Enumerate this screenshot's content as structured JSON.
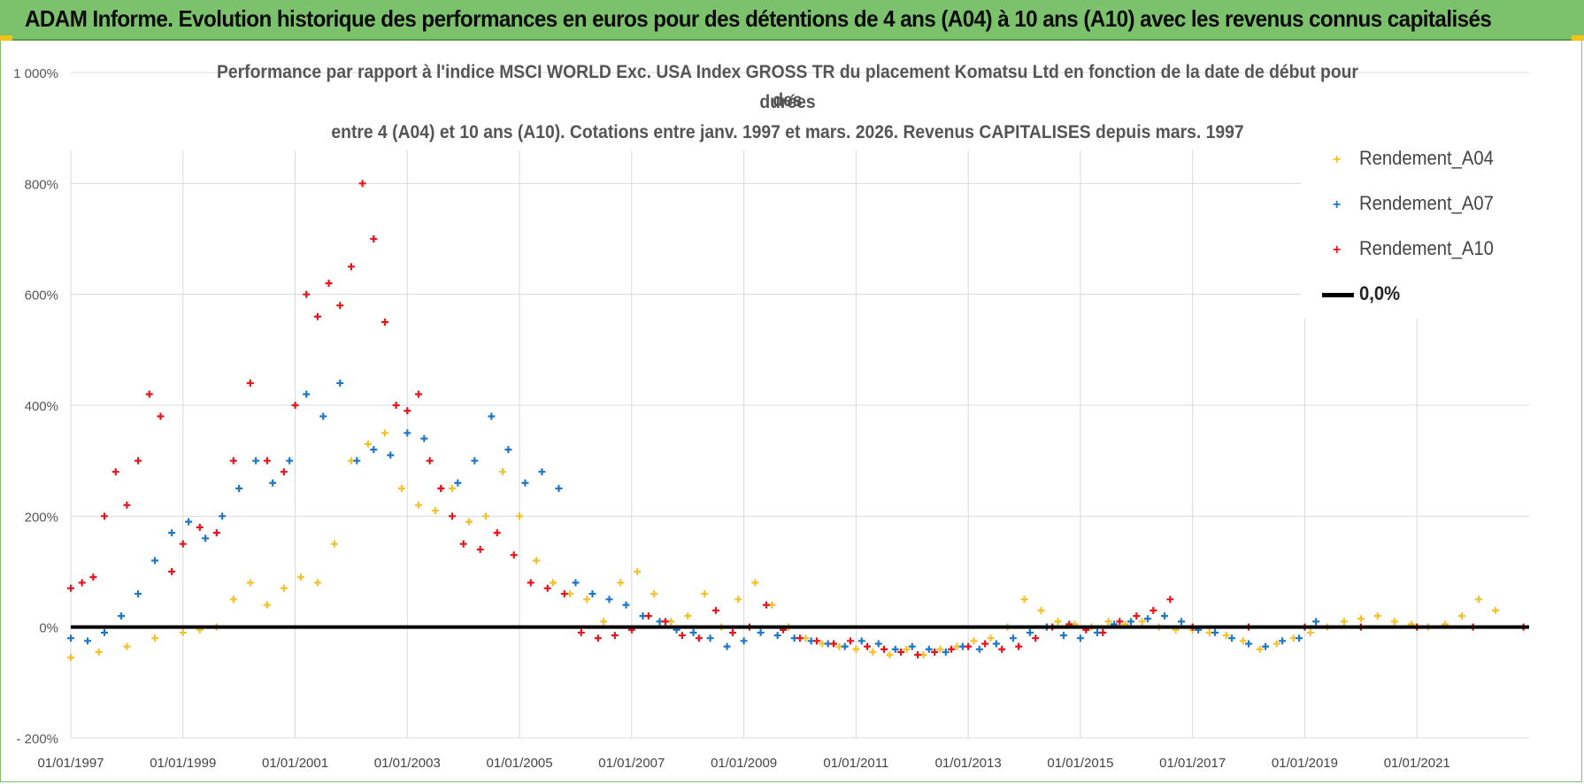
{
  "banner": {
    "title": "ADAM Informe. Evolution historique des performances en euros pour des détentions de 4 ans (A04) à 10 ans (A10) avec les revenus connus capitalisés",
    "color": "#7cc16b"
  },
  "chart_data": {
    "type": "scatter",
    "title_lines": [
      "Performance par rapport à l'indice MSCI WORLD Exc. USA Index GROSS TR  du placement Komatsu Ltd en fonction de la date de début pour des",
      "durées",
      "entre 4 (A04) et 10 ans (A10). Cotations entre janv. 1997 et mars. 2026. Revenus CAPITALISES depuis mars. 1997"
    ],
    "x_tick_labels": [
      "01/01/1997",
      "01/01/1999",
      "01/01/2001",
      "01/01/2003",
      "01/01/2005",
      "01/01/2007",
      "01/01/2009",
      "01/01/2011",
      "01/01/2013",
      "01/01/2015",
      "01/01/2017",
      "01/01/2019",
      "01/01/2021"
    ],
    "xlim": [
      "01/01/1997",
      "01/01/2023"
    ],
    "y_tick_labels": [
      "- 200%",
      "0%",
      "200%",
      "400%",
      "600%",
      "800%",
      "1 000%"
    ],
    "y_ticks": [
      -200,
      0,
      200,
      400,
      600,
      800,
      1000
    ],
    "ylim": [
      -200,
      1000
    ],
    "grid": true,
    "legend_position": "right",
    "series": [
      {
        "name": "Rendement_A04",
        "color": "#f5c02a",
        "x": [
          1997.0,
          1997.5,
          1998.0,
          1998.5,
          1999.0,
          1999.3,
          1999.6,
          1999.9,
          2000.2,
          2000.5,
          2000.8,
          2001.1,
          2001.4,
          2001.7,
          2002.0,
          2002.3,
          2002.6,
          2002.9,
          2003.2,
          2003.5,
          2003.8,
          2004.1,
          2004.4,
          2004.7,
          2005.0,
          2005.3,
          2005.6,
          2005.9,
          2006.2,
          2006.5,
          2006.8,
          2007.1,
          2007.4,
          2007.7,
          2008.0,
          2008.3,
          2008.6,
          2008.9,
          2009.2,
          2009.5,
          2009.8,
          2010.1,
          2010.4,
          2010.7,
          2011.0,
          2011.3,
          2011.6,
          2011.9,
          2012.2,
          2012.5,
          2012.8,
          2013.1,
          2013.4,
          2013.7,
          2014.0,
          2014.3,
          2014.6,
          2014.9,
          2015.2,
          2015.5,
          2015.8,
          2016.1,
          2016.4,
          2016.7,
          2017.0,
          2017.3,
          2017.6,
          2017.9,
          2018.2,
          2018.5,
          2018.8,
          2019.1,
          2019.4,
          2019.7,
          2020.0,
          2020.3,
          2020.6,
          2020.9,
          2021.2,
          2021.5,
          2021.8,
          2022.1,
          2022.4
        ],
        "y": [
          -55,
          -45,
          -35,
          -20,
          -10,
          -5,
          0,
          50,
          80,
          40,
          70,
          90,
          80,
          150,
          300,
          330,
          350,
          250,
          220,
          210,
          250,
          190,
          200,
          280,
          200,
          120,
          80,
          60,
          50,
          10,
          80,
          100,
          60,
          10,
          20,
          60,
          0,
          50,
          80,
          40,
          0,
          -20,
          -30,
          -35,
          -40,
          -45,
          -50,
          -40,
          -50,
          -40,
          -35,
          -25,
          -20,
          0,
          50,
          30,
          10,
          5,
          0,
          10,
          5,
          10,
          0,
          -5,
          -5,
          -10,
          -15,
          -25,
          -40,
          -30,
          -20,
          -10,
          0,
          10,
          15,
          20,
          10,
          5,
          0,
          5,
          20,
          50,
          30
        ]
      },
      {
        "name": "Rendement_A07",
        "color": "#1f77c8",
        "x": [
          1997.0,
          1997.3,
          1997.6,
          1997.9,
          1998.2,
          1998.5,
          1998.8,
          1999.1,
          1999.4,
          1999.7,
          2000.0,
          2000.3,
          2000.6,
          2000.9,
          2001.2,
          2001.5,
          2001.8,
          2002.1,
          2002.4,
          2002.7,
          2003.0,
          2003.3,
          2003.6,
          2003.9,
          2004.2,
          2004.5,
          2004.8,
          2005.1,
          2005.4,
          2005.7,
          2006.0,
          2006.3,
          2006.6,
          2006.9,
          2007.2,
          2007.5,
          2007.8,
          2008.1,
          2008.4,
          2008.7,
          2009.0,
          2009.3,
          2009.6,
          2009.9,
          2010.2,
          2010.5,
          2010.8,
          2011.1,
          2011.4,
          2011.7,
          2012.0,
          2012.3,
          2012.6,
          2012.9,
          2013.2,
          2013.5,
          2013.8,
          2014.1,
          2014.4,
          2014.7,
          2015.0,
          2015.3,
          2015.6,
          2015.9,
          2016.2,
          2016.5,
          2016.8,
          2017.1,
          2017.4,
          2017.7,
          2018.0,
          2018.3,
          2018.6,
          2018.9,
          2019.2
        ],
        "y": [
          -20,
          -25,
          -10,
          20,
          60,
          120,
          170,
          190,
          160,
          200,
          250,
          300,
          260,
          300,
          420,
          380,
          440,
          300,
          320,
          310,
          350,
          340,
          250,
          260,
          300,
          380,
          320,
          260,
          280,
          250,
          80,
          60,
          50,
          40,
          20,
          10,
          -5,
          -10,
          -20,
          -35,
          -25,
          -10,
          -15,
          -20,
          -25,
          -30,
          -35,
          -25,
          -30,
          -40,
          -35,
          -40,
          -45,
          -35,
          -40,
          -30,
          -20,
          -10,
          0,
          -15,
          -20,
          -10,
          5,
          10,
          15,
          20,
          10,
          -5,
          -10,
          -20,
          -30,
          -35,
          -25,
          -20,
          10
        ]
      },
      {
        "name": "Rendement_A10",
        "color": "#e8141c",
        "x": [
          1997.0,
          1997.2,
          1997.4,
          1997.6,
          1997.8,
          1998.0,
          1998.2,
          1998.4,
          1998.6,
          1998.8,
          1999.0,
          1999.3,
          1999.6,
          1999.9,
          2000.2,
          2000.5,
          2000.8,
          2001.0,
          2001.2,
          2001.4,
          2001.6,
          2001.8,
          2002.0,
          2002.2,
          2002.4,
          2002.6,
          2002.8,
          2003.0,
          2003.2,
          2003.4,
          2003.6,
          2003.8,
          2004.0,
          2004.3,
          2004.6,
          2004.9,
          2005.2,
          2005.5,
          2005.8,
          2006.1,
          2006.4,
          2006.7,
          2007.0,
          2007.3,
          2007.6,
          2007.9,
          2008.2,
          2008.5,
          2008.8,
          2009.1,
          2009.4,
          2009.7,
          2010.0,
          2010.3,
          2010.6,
          2010.9,
          2011.2,
          2011.5,
          2011.8,
          2012.1,
          2012.4,
          2012.7,
          2013.0,
          2013.3,
          2013.6,
          2013.9,
          2014.2,
          2014.5,
          2014.8,
          2015.1,
          2015.4,
          2015.7,
          2016.0,
          2016.3,
          2016.6,
          2017.0,
          2018.0,
          2019.0,
          2020.0,
          2021.0,
          2022.0,
          2022.9
        ],
        "y": [
          70,
          80,
          90,
          200,
          280,
          220,
          300,
          420,
          380,
          100,
          150,
          180,
          170,
          300,
          440,
          300,
          280,
          400,
          600,
          560,
          620,
          580,
          650,
          800,
          700,
          550,
          400,
          390,
          420,
          300,
          250,
          200,
          150,
          140,
          170,
          130,
          80,
          70,
          60,
          -10,
          -20,
          -15,
          -5,
          20,
          10,
          -15,
          -20,
          30,
          -10,
          0,
          40,
          -5,
          -20,
          -25,
          -30,
          -25,
          -35,
          -40,
          -45,
          -50,
          -45,
          -40,
          -35,
          -30,
          -40,
          -35,
          -20,
          0,
          5,
          -5,
          -10,
          10,
          20,
          30,
          50,
          0,
          0,
          0,
          0,
          0,
          0,
          0
        ]
      },
      {
        "name": "0,0%",
        "color": "#000000",
        "type": "line",
        "x": [
          1997.0,
          2023.0
        ],
        "y": [
          0,
          0
        ]
      }
    ]
  }
}
